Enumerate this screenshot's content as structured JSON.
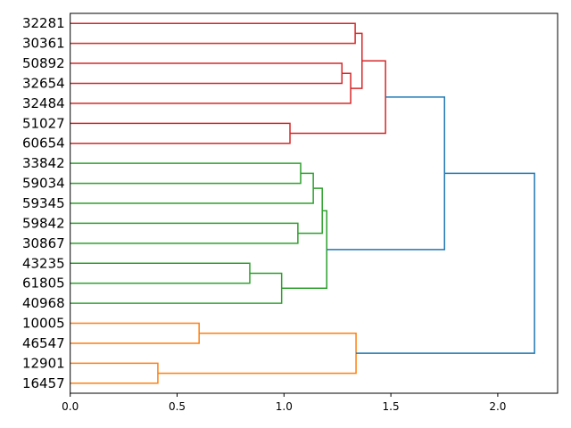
{
  "chart_data": {
    "type": "dendrogram",
    "orientation": "right",
    "title": "",
    "xlabel": "",
    "ylabel": "",
    "xlim": [
      0,
      2.28
    ],
    "xticks": [
      0.0,
      0.5,
      1.0,
      1.5,
      2.0
    ],
    "xtick_labels": [
      "0.0",
      "0.5",
      "1.0",
      "1.5",
      "2.0"
    ],
    "leaves": [
      "32281",
      "30361",
      "50892",
      "32654",
      "32484",
      "51027",
      "60654",
      "33842",
      "59034",
      "59345",
      "59842",
      "30867",
      "43235",
      "61805",
      "40968",
      "10005",
      "46547",
      "12901",
      "16457"
    ],
    "colors": {
      "red": "#d62728",
      "green": "#2ca02c",
      "orange": "#ff7f0e",
      "blue": "#1f77b4"
    },
    "links": [
      {
        "a": 0,
        "b": 1,
        "height": 1.333,
        "color": "red"
      },
      {
        "a": 2,
        "b": 3,
        "height": 1.271,
        "color": "red"
      },
      {
        "a": 20,
        "b": 4,
        "height": 1.312,
        "color": "red"
      },
      {
        "a": 19,
        "b": 21,
        "height": 1.365,
        "color": "red"
      },
      {
        "a": 5,
        "b": 6,
        "height": 1.028,
        "color": "red"
      },
      {
        "a": 22,
        "b": 23,
        "height": 1.475,
        "color": "red"
      },
      {
        "a": 7,
        "b": 8,
        "height": 1.078,
        "color": "green"
      },
      {
        "a": 25,
        "b": 9,
        "height": 1.137,
        "color": "green"
      },
      {
        "a": 10,
        "b": 11,
        "height": 1.065,
        "color": "green"
      },
      {
        "a": 26,
        "b": 27,
        "height": 1.179,
        "color": "green"
      },
      {
        "a": 12,
        "b": 13,
        "height": 0.84,
        "color": "green"
      },
      {
        "a": 29,
        "b": 14,
        "height": 0.989,
        "color": "green"
      },
      {
        "a": 28,
        "b": 30,
        "height": 1.2,
        "color": "green"
      },
      {
        "a": 24,
        "b": 31,
        "height": 1.751,
        "color": "blue"
      },
      {
        "a": 15,
        "b": 16,
        "height": 0.603,
        "color": "orange"
      },
      {
        "a": 17,
        "b": 18,
        "height": 0.41,
        "color": "orange"
      },
      {
        "a": 33,
        "b": 34,
        "height": 1.337,
        "color": "orange"
      },
      {
        "a": 32,
        "b": 35,
        "height": 2.172,
        "color": "blue"
      }
    ]
  }
}
